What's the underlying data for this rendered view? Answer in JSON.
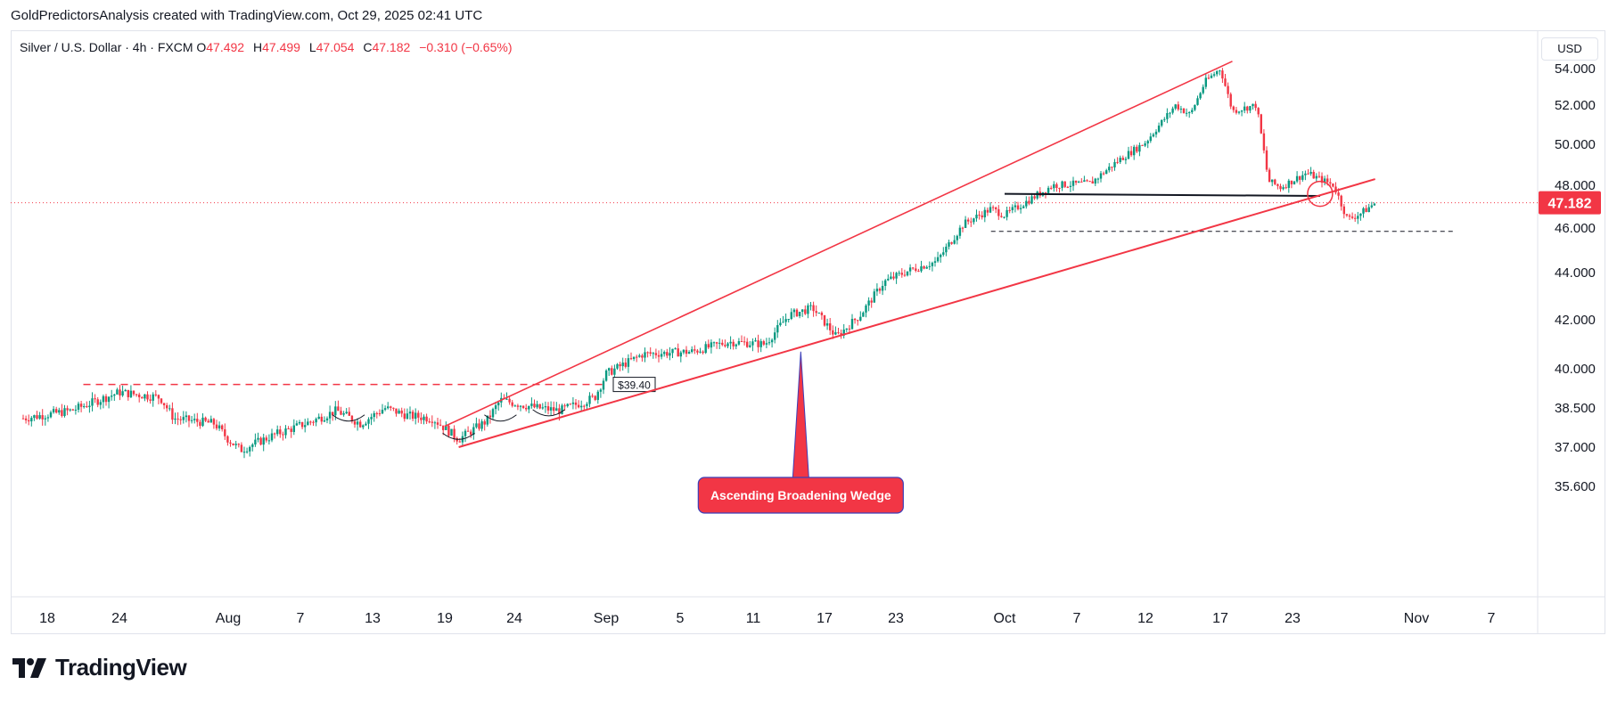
{
  "header": {
    "title": "GoldPredictorsAnalysis created with TradingView.com, Oct 29, 2025 02:41 UTC"
  },
  "legend": {
    "symbol": "Silver / U.S. Dollar · 4h · FXCM",
    "open_label": "O",
    "open": "47.492",
    "high_label": "H",
    "high": "47.499",
    "low_label": "L",
    "low": "47.054",
    "close_label": "C",
    "close": "47.182",
    "change": "−0.310 (−0.65%)"
  },
  "currency_button": "USD",
  "brand": {
    "name": "TradingView"
  },
  "colors": {
    "up": "#089981",
    "down": "#f23645",
    "accent": "#f23645",
    "text": "#131722",
    "grid": "#e0e3eb"
  },
  "chart_data": {
    "type": "candlestick",
    "title": "Silver / U.S. Dollar · 4h · FXCM",
    "y_ticks": [
      "54.000",
      "52.000",
      "50.000",
      "48.000",
      "46.000",
      "44.000",
      "42.000",
      "40.000",
      "38.500",
      "37.000",
      "35.600"
    ],
    "y_tick_values": [
      54,
      52,
      50,
      48,
      46,
      44,
      42,
      40,
      38.5,
      37,
      35.6
    ],
    "x_ticks": [
      "18",
      "24",
      "Aug",
      "7",
      "13",
      "19",
      "24",
      "Sep",
      "5",
      "11",
      "17",
      "23",
      "Oct",
      "7",
      "12",
      "17",
      "23",
      "Nov",
      "7"
    ],
    "x_tick_dates": [
      "2025-07-18",
      "2025-07-24",
      "2025-08-01",
      "2025-08-07",
      "2025-08-13",
      "2025-08-19",
      "2025-08-24",
      "2025-09-01",
      "2025-09-05",
      "2025-09-11",
      "2025-09-17",
      "2025-09-23",
      "2025-10-01",
      "2025-10-07",
      "2025-10-12",
      "2025-10-17",
      "2025-10-23",
      "2025-11-01",
      "2025-11-07"
    ],
    "last_price": "47.182",
    "price_path": [
      [
        "2025-07-16",
        38.1
      ],
      [
        "2025-07-20",
        38.4
      ],
      [
        "2025-07-24",
        39.1
      ],
      [
        "2025-07-27",
        38.9
      ],
      [
        "2025-07-28",
        38.1
      ],
      [
        "2025-07-31",
        37.9
      ],
      [
        "2025-08-01",
        37.3
      ],
      [
        "2025-08-02",
        36.9
      ],
      [
        "2025-08-05",
        37.5
      ],
      [
        "2025-08-08",
        38.0
      ],
      [
        "2025-08-10",
        38.4
      ],
      [
        "2025-08-12",
        37.9
      ],
      [
        "2025-08-14",
        38.5
      ],
      [
        "2025-08-16",
        38.2
      ],
      [
        "2025-08-18",
        38.1
      ],
      [
        "2025-08-20",
        37.3
      ],
      [
        "2025-08-22",
        38.0
      ],
      [
        "2025-08-23",
        38.8
      ],
      [
        "2025-08-26",
        38.5
      ],
      [
        "2025-08-28",
        38.4
      ],
      [
        "2025-08-31",
        38.9
      ],
      [
        "2025-09-01",
        39.8
      ],
      [
        "2025-09-03",
        40.6
      ],
      [
        "2025-09-06",
        40.7
      ],
      [
        "2025-09-09",
        41.1
      ],
      [
        "2025-09-12",
        41.0
      ],
      [
        "2025-09-14",
        42.2
      ],
      [
        "2025-09-16",
        42.5
      ],
      [
        "2025-09-18",
        41.3
      ],
      [
        "2025-09-20",
        42.2
      ],
      [
        "2025-09-22",
        43.6
      ],
      [
        "2025-09-24",
        44.1
      ],
      [
        "2025-09-26",
        44.5
      ],
      [
        "2025-09-28",
        46.2
      ],
      [
        "2025-09-30",
        46.9
      ],
      [
        "2025-10-01",
        46.6
      ],
      [
        "2025-10-03",
        47.3
      ],
      [
        "2025-10-05",
        48.0
      ],
      [
        "2025-10-08",
        48.1
      ],
      [
        "2025-10-10",
        49.2
      ],
      [
        "2025-10-12",
        50.1
      ],
      [
        "2025-10-14",
        52.0
      ],
      [
        "2025-10-15",
        51.5
      ],
      [
        "2025-10-16",
        53.3
      ],
      [
        "2025-10-17",
        54.0
      ],
      [
        "2025-10-18",
        51.7
      ],
      [
        "2025-10-20",
        52.0
      ],
      [
        "2025-10-21",
        48.2
      ],
      [
        "2025-10-22",
        47.9
      ],
      [
        "2025-10-24",
        48.6
      ],
      [
        "2025-10-26",
        48.0
      ],
      [
        "2025-10-27",
        46.4
      ],
      [
        "2025-10-28",
        46.7
      ],
      [
        "2025-10-29",
        47.18
      ]
    ],
    "annotations": {
      "wedge_label": "Ascending Broadening Wedge",
      "resistance_label": "$39.40",
      "resistance_price": 39.4,
      "support_dashed_price": 45.85,
      "neckline_price": 47.5,
      "wedge_upper": [
        [
          "2025-08-19",
          37.8
        ],
        [
          "2025-10-18",
          54.4
        ]
      ],
      "wedge_lower": [
        [
          "2025-08-20",
          37.0
        ],
        [
          "2025-10-29",
          48.3
        ]
      ],
      "neckline": [
        [
          "2025-10-01",
          47.6
        ],
        [
          "2025-10-25",
          47.5
        ]
      ],
      "support_line": [
        [
          "2025-09-30",
          45.85
        ],
        [
          "2025-11-04",
          45.85
        ]
      ],
      "resistance_line": [
        [
          "2025-07-21",
          39.4
        ],
        [
          "2025-09-01",
          39.4
        ]
      ]
    }
  }
}
